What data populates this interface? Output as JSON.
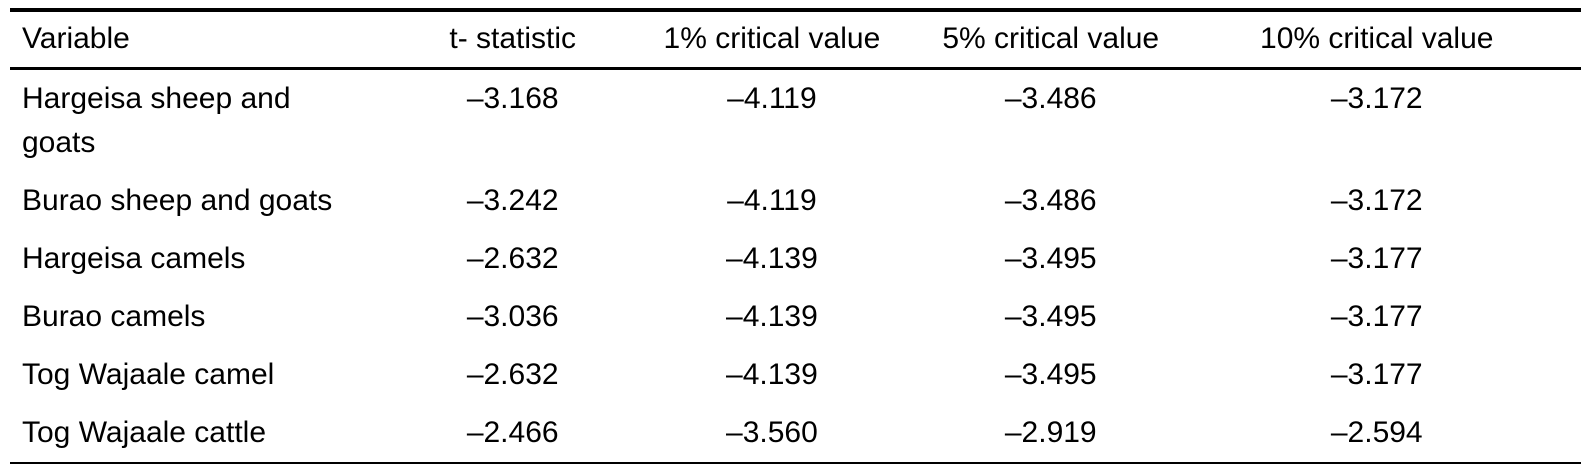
{
  "table": {
    "description": "Unit root test results table from an academic paper",
    "colors": {
      "text": "#000000",
      "rule": "#000000",
      "background": "#ffffff"
    },
    "columns": [
      "Variable",
      "t- statistic",
      "1% critical value",
      "5% critical value",
      "10% critical value"
    ],
    "rows": [
      {
        "variable": "Hargeisa sheep and\ngoats",
        "t_statistic": "–3.168",
        "cv_1pct": "–4.119",
        "cv_5pct": "–3.486",
        "cv_10pct": "–3.172"
      },
      {
        "variable": "Burao sheep and goats",
        "t_statistic": "–3.242",
        "cv_1pct": "–4.119",
        "cv_5pct": "–3.486",
        "cv_10pct": "–3.172"
      },
      {
        "variable": "Hargeisa camels",
        "t_statistic": "–2.632",
        "cv_1pct": "–4.139",
        "cv_5pct": "–3.495",
        "cv_10pct": "–3.177"
      },
      {
        "variable": "Burao camels",
        "t_statistic": "–3.036",
        "cv_1pct": "–4.139",
        "cv_5pct": "–3.495",
        "cv_10pct": "–3.177"
      },
      {
        "variable": "Tog Wajaale camel",
        "t_statistic": "–2.632",
        "cv_1pct": "–4.139",
        "cv_5pct": "–3.495",
        "cv_10pct": "–3.177"
      },
      {
        "variable": "Tog Wajaale cattle",
        "t_statistic": "–2.466",
        "cv_1pct": "–3.560",
        "cv_5pct": "–2.919",
        "cv_10pct": "–2.594"
      }
    ]
  }
}
